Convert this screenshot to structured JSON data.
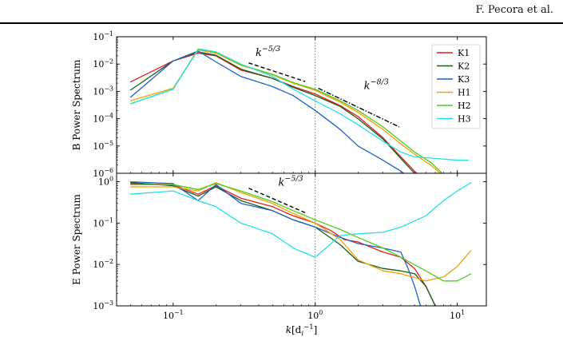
{
  "header": {
    "author": "F. Pecora et al."
  },
  "chart_data": [
    {
      "type": "line",
      "panel": "top",
      "ylabel": "B Power Spectrum",
      "xlabel": "",
      "xscale": "log",
      "yscale": "log",
      "xlim": [
        0.04,
        16
      ],
      "ylim": [
        1e-06,
        0.1
      ],
      "y_ticks": [
        {
          "v": 1e-06,
          "m": "10",
          "e": "−6"
        },
        {
          "v": 1e-05,
          "m": "10",
          "e": "−5"
        },
        {
          "v": 0.0001,
          "m": "10",
          "e": "−4"
        },
        {
          "v": 0.001,
          "m": "10",
          "e": "−3"
        },
        {
          "v": 0.01,
          "m": "10",
          "e": "−2"
        },
        {
          "v": 0.1,
          "m": "10",
          "e": "−1"
        }
      ],
      "legend_position": "top-right",
      "annotations": [
        {
          "base": "k",
          "exp": "−5/3",
          "x": 0.38,
          "y": 0.02
        },
        {
          "base": "k",
          "exp": "−8/3",
          "x": 2.2,
          "y": 0.0012
        }
      ],
      "reference_lines": [
        {
          "style": "dashed",
          "points": [
            [
              0.34,
              0.011
            ],
            [
              0.85,
              0.0023
            ]
          ]
        },
        {
          "style": "dashdot",
          "points": [
            [
              1.05,
              0.0013
            ],
            [
              3.9,
              5e-05
            ]
          ]
        }
      ],
      "vline_x": 1.0,
      "series": [
        {
          "name": "K1",
          "color": "#e41a1c",
          "x": [
            0.05,
            0.1,
            0.15,
            0.2,
            0.3,
            0.5,
            0.7,
            1.0,
            1.5,
            2.0,
            3.0,
            4.0,
            5.0,
            6.0
          ],
          "y": [
            0.0022,
            0.013,
            0.025,
            0.02,
            0.006,
            0.003,
            0.0015,
            0.0008,
            0.0003,
            0.00012,
            2e-05,
            4e-06,
            1.2e-06,
            5e-07
          ]
        },
        {
          "name": "K2",
          "color": "#1a5c1a",
          "x": [
            0.05,
            0.1,
            0.15,
            0.2,
            0.3,
            0.5,
            0.7,
            1.0,
            1.5,
            2.0,
            3.0,
            4.0,
            5.0,
            6.0
          ],
          "y": [
            0.0011,
            0.013,
            0.028,
            0.021,
            0.0065,
            0.003,
            0.0014,
            0.0007,
            0.00028,
            0.0001,
            1.8e-05,
            3.5e-06,
            1e-06,
            5e-07
          ]
        },
        {
          "name": "K3",
          "color": "#1f5fc8",
          "x": [
            0.05,
            0.1,
            0.15,
            0.2,
            0.3,
            0.5,
            0.7,
            1.0,
            1.5,
            2.0,
            3.0,
            4.0,
            5.0
          ],
          "y": [
            0.0006,
            0.013,
            0.03,
            0.012,
            0.0035,
            0.0015,
            0.0007,
            0.0002,
            4e-05,
            1e-05,
            3e-06,
            1.2e-06,
            5e-07
          ]
        },
        {
          "name": "H1",
          "color": "#f5a000",
          "x": [
            0.05,
            0.1,
            0.15,
            0.2,
            0.3,
            0.5,
            0.7,
            1.0,
            1.5,
            2.0,
            3.0,
            4.0,
            5.0,
            6.5,
            8.0,
            9.0
          ],
          "y": [
            0.00045,
            0.0013,
            0.033,
            0.025,
            0.009,
            0.004,
            0.002,
            0.0011,
            0.0004,
            0.00017,
            4e-05,
            1.2e-05,
            5e-06,
            2e-06,
            8e-07,
            5e-07
          ]
        },
        {
          "name": "H2",
          "color": "#4ccd1e",
          "x": [
            0.05,
            0.1,
            0.15,
            0.2,
            0.3,
            0.5,
            0.7,
            1.0,
            1.5,
            2.0,
            3.0,
            4.0,
            5.0,
            6.5,
            8.0,
            9.0
          ],
          "y": [
            0.00035,
            0.0012,
            0.035,
            0.027,
            0.0095,
            0.0042,
            0.0021,
            0.0012,
            0.00045,
            0.0002,
            5e-05,
            1.5e-05,
            6e-06,
            2.5e-06,
            9e-07,
            5e-07
          ]
        },
        {
          "name": "H3",
          "color": "#22e1e6",
          "x": [
            0.05,
            0.1,
            0.15,
            0.2,
            0.3,
            0.5,
            0.7,
            1.0,
            1.5,
            2.0,
            3.0,
            4.0,
            5.0,
            7.0,
            10.0,
            12.0
          ],
          "y": [
            0.00035,
            0.0012,
            0.036,
            0.028,
            0.01,
            0.0035,
            0.0012,
            0.00045,
            0.00015,
            6e-05,
            1.5e-05,
            6e-06,
            4e-06,
            3.5e-06,
            3e-06,
            3e-06
          ]
        }
      ]
    },
    {
      "type": "line",
      "panel": "bottom",
      "ylabel": "E Power Spectrum",
      "xlabel": "k[d_i^-1]",
      "xscale": "log",
      "yscale": "log",
      "xlim": [
        0.04,
        16
      ],
      "ylim": [
        0.001,
        1.6
      ],
      "x_ticks": [
        {
          "v": 0.1,
          "m": "10",
          "e": "−1"
        },
        {
          "v": 1.0,
          "m": "10",
          "e": "0"
        },
        {
          "v": 10.0,
          "m": "10",
          "e": "1"
        }
      ],
      "y_ticks": [
        {
          "v": 0.001,
          "m": "10",
          "e": "−3"
        },
        {
          "v": 0.01,
          "m": "10",
          "e": "−2"
        },
        {
          "v": 0.1,
          "m": "10",
          "e": "−1"
        },
        {
          "v": 1.0,
          "m": "10",
          "e": "0"
        }
      ],
      "annotations": [
        {
          "base": "k",
          "exp": "−5/3",
          "x": 0.55,
          "y": 0.8
        }
      ],
      "reference_lines": [
        {
          "style": "dashed",
          "points": [
            [
              0.34,
              0.7
            ],
            [
              0.88,
              0.17
            ]
          ]
        }
      ],
      "vline_x": 1.0,
      "series": [
        {
          "name": "K1",
          "color": "#e41a1c",
          "x": [
            0.05,
            0.1,
            0.15,
            0.2,
            0.3,
            0.5,
            0.7,
            1.0,
            1.3,
            1.6,
            2.0,
            3.0,
            4.0,
            5.0,
            6.0,
            7.0
          ],
          "y": [
            0.9,
            0.85,
            0.5,
            0.8,
            0.4,
            0.25,
            0.15,
            0.1,
            0.065,
            0.04,
            0.035,
            0.02,
            0.015,
            0.008,
            0.003,
            0.001
          ]
        },
        {
          "name": "K2",
          "color": "#1a5c1a",
          "x": [
            0.05,
            0.1,
            0.15,
            0.2,
            0.3,
            0.5,
            0.7,
            1.0,
            1.5,
            2.0,
            3.0,
            4.0,
            5.0,
            6.0,
            7.0
          ],
          "y": [
            0.95,
            0.8,
            0.45,
            0.75,
            0.35,
            0.2,
            0.12,
            0.08,
            0.03,
            0.012,
            0.008,
            0.007,
            0.006,
            0.003,
            0.001
          ]
        },
        {
          "name": "K3",
          "color": "#1f5fc8",
          "x": [
            0.05,
            0.1,
            0.15,
            0.2,
            0.3,
            0.5,
            0.7,
            1.0,
            1.5,
            2.0,
            3.0,
            4.0,
            4.5,
            5.0,
            5.5
          ],
          "y": [
            1.0,
            0.9,
            0.35,
            0.85,
            0.3,
            0.2,
            0.12,
            0.08,
            0.045,
            0.032,
            0.025,
            0.02,
            0.008,
            0.003,
            0.001
          ]
        },
        {
          "name": "H1",
          "color": "#f5a000",
          "x": [
            0.05,
            0.1,
            0.15,
            0.2,
            0.3,
            0.5,
            0.7,
            1.0,
            1.5,
            2.0,
            3.0,
            4.0,
            6.0,
            8.0,
            10.0,
            12.5
          ],
          "y": [
            0.75,
            0.75,
            0.6,
            0.95,
            0.55,
            0.3,
            0.17,
            0.1,
            0.04,
            0.013,
            0.007,
            0.006,
            0.004,
            0.005,
            0.009,
            0.022
          ]
        },
        {
          "name": "H2",
          "color": "#4ccd1e",
          "x": [
            0.05,
            0.1,
            0.15,
            0.2,
            0.3,
            0.5,
            0.7,
            1.0,
            1.5,
            2.0,
            3.0,
            4.0,
            6.0,
            8.0,
            10.0,
            12.5
          ],
          "y": [
            0.85,
            0.85,
            0.65,
            0.9,
            0.6,
            0.33,
            0.2,
            0.12,
            0.07,
            0.045,
            0.025,
            0.015,
            0.007,
            0.004,
            0.004,
            0.006
          ]
        },
        {
          "name": "H3",
          "color": "#22e1e6",
          "x": [
            0.05,
            0.1,
            0.15,
            0.2,
            0.3,
            0.5,
            0.7,
            1.0,
            1.5,
            2.0,
            3.0,
            4.0,
            6.0,
            8.0,
            10.0,
            12.5
          ],
          "y": [
            0.5,
            0.6,
            0.35,
            0.25,
            0.1,
            0.055,
            0.025,
            0.015,
            0.05,
            0.055,
            0.06,
            0.08,
            0.15,
            0.35,
            0.6,
            0.95
          ]
        }
      ]
    }
  ]
}
